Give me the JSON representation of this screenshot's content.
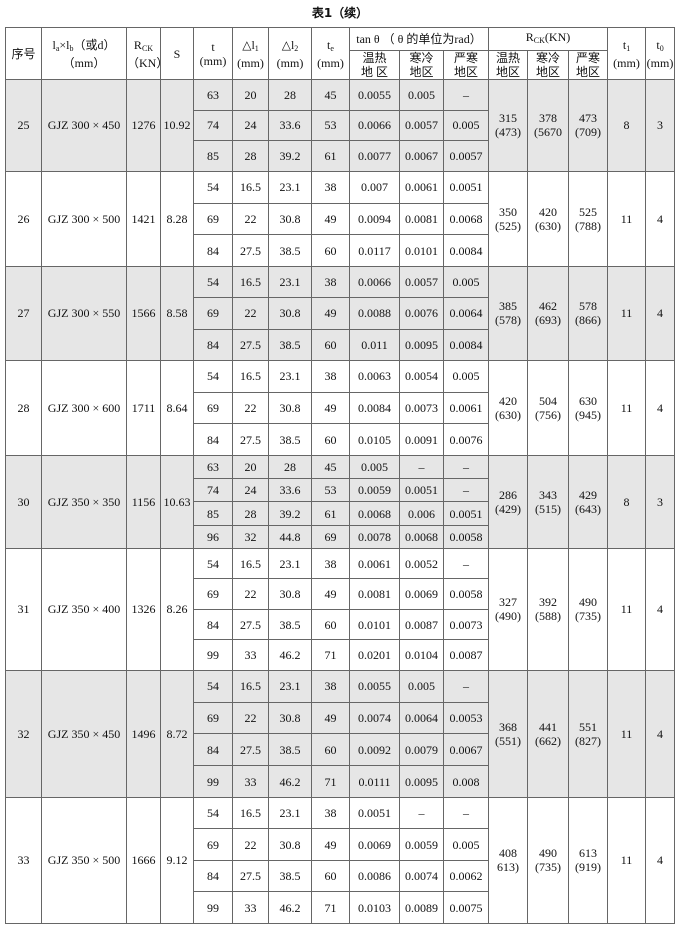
{
  "title": "表1（续）",
  "header": {
    "no": "序号",
    "size": {
      "l": "l",
      "a": "a",
      "x": "×l",
      "b": "b",
      "rest": "（或d）",
      "unit": "（mm）"
    },
    "rck": {
      "base": "R",
      "sub": "CK",
      "unit": "（KN）"
    },
    "s": "S",
    "t": {
      "base": "t",
      "unit": "(mm)"
    },
    "dl1": {
      "base": "△l",
      "sub": "1",
      "unit": "(mm)"
    },
    "dl2": {
      "base": "△l",
      "sub": "2",
      "unit": "(mm)"
    },
    "te": {
      "base": "t",
      "sub": "e",
      "unit": "(mm)"
    },
    "tan": "tan θ （ θ 的单位为rad）",
    "rck2": {
      "base": "R",
      "sub": "CK",
      "rest": "(KN)"
    },
    "regions": [
      "温热\n地 区",
      "寒冷\n地区",
      "严寒\n地区"
    ],
    "regions2": [
      "温热\n地区",
      "寒冷\n地区",
      "严寒\n地区"
    ],
    "t1": {
      "base": "t",
      "sub": "1",
      "unit": "(mm)"
    },
    "t0": {
      "base": "t",
      "sub": "0",
      "unit": "(mm)"
    }
  },
  "groups": [
    {
      "no": "25",
      "model": "GJZ 300 × 450",
      "rck": "1276",
      "s": "10.92",
      "shaded": true,
      "rows": [
        [
          "63",
          "20",
          "28",
          "45",
          "0.0055",
          "0.005",
          "–"
        ],
        [
          "74",
          "24",
          "33.6",
          "53",
          "0.0066",
          "0.0057",
          "0.005"
        ],
        [
          "85",
          "28",
          "39.2",
          "61",
          "0.0077",
          "0.0067",
          "0.0057"
        ]
      ],
      "rck_regions": [
        "315\n(473)",
        "378\n(5670",
        "473\n(709)"
      ],
      "t1": "8",
      "t0": "3"
    },
    {
      "no": "26",
      "model": "GJZ 300 × 500",
      "rck": "1421",
      "s": "8.28",
      "shaded": false,
      "rows": [
        [
          "54",
          "16.5",
          "23.1",
          "38",
          "0.007",
          "0.0061",
          "0.0051"
        ],
        [
          "69",
          "22",
          "30.8",
          "49",
          "0.0094",
          "0.0081",
          "0.0068"
        ],
        [
          "84",
          "27.5",
          "38.5",
          "60",
          "0.0117",
          "0.0101",
          "0.0084"
        ]
      ],
      "rck_regions": [
        "350\n(525)",
        "420\n(630)",
        "525\n(788)"
      ],
      "t1": "11",
      "t0": "4"
    },
    {
      "no": "27",
      "model": "GJZ 300 × 550",
      "rck": "1566",
      "s": "8.58",
      "shaded": true,
      "rows": [
        [
          "54",
          "16.5",
          "23.1",
          "38",
          "0.0066",
          "0.0057",
          "0.005"
        ],
        [
          "69",
          "22",
          "30.8",
          "49",
          "0.0088",
          "0.0076",
          "0.0064"
        ],
        [
          "84",
          "27.5",
          "38.5",
          "60",
          "0.011",
          "0.0095",
          "0.0084"
        ]
      ],
      "rck_regions": [
        "385\n(578)",
        "462\n(693)",
        "578\n(866)"
      ],
      "t1": "11",
      "t0": "4"
    },
    {
      "no": "28",
      "model": "GJZ 300 × 600",
      "rck": "1711",
      "s": "8.64",
      "shaded": false,
      "rows": [
        [
          "54",
          "16.5",
          "23.1",
          "38",
          "0.0063",
          "0.0054",
          "0.005"
        ],
        [
          "69",
          "22",
          "30.8",
          "49",
          "0.0084",
          "0.0073",
          "0.0061"
        ],
        [
          "84",
          "27.5",
          "38.5",
          "60",
          "0.0105",
          "0.0091",
          "0.0076"
        ]
      ],
      "rck_regions": [
        "420\n(630)",
        "504\n(756)",
        "630\n(945)"
      ],
      "t1": "11",
      "t0": "4"
    },
    {
      "no": "30",
      "model": "GJZ 350 × 350",
      "rck": "1156",
      "s": "10.63",
      "shaded": true,
      "rows": [
        [
          "63",
          "20",
          "28",
          "45",
          "0.005",
          "–",
          "–"
        ],
        [
          "74",
          "24",
          "33.6",
          "53",
          "0.0059",
          "0.0051",
          "–"
        ],
        [
          "85",
          "28",
          "39.2",
          "61",
          "0.0068",
          "0.006",
          "0.0051"
        ],
        [
          "96",
          "32",
          "44.8",
          "69",
          "0.0078",
          "0.0068",
          "0.0058"
        ]
      ],
      "rck_regions": [
        "286\n(429)",
        "343\n(515)",
        "429\n(643)"
      ],
      "t1": "8",
      "t0": "3"
    },
    {
      "no": "31",
      "model": "GJZ 350 × 400",
      "rck": "1326",
      "s": "8.26",
      "shaded": false,
      "rows": [
        [
          "54",
          "16.5",
          "23.1",
          "38",
          "0.0061",
          "0.0052",
          "–"
        ],
        [
          "69",
          "22",
          "30.8",
          "49",
          "0.0081",
          "0.0069",
          "0.0058"
        ],
        [
          "84",
          "27.5",
          "38.5",
          "60",
          "0.0101",
          "0.0087",
          "0.0073"
        ],
        [
          "99",
          "33",
          "46.2",
          "71",
          "0.0201",
          "0.0104",
          "0.0087"
        ]
      ],
      "rck_regions": [
        "327\n(490)",
        "392\n(588)",
        "490\n(735)"
      ],
      "t1": "11",
      "t0": "4"
    },
    {
      "no": "32",
      "model": "GJZ 350 × 450",
      "rck": "1496",
      "s": "8.72",
      "shaded": true,
      "rows": [
        [
          "54",
          "16.5",
          "23.1",
          "38",
          "0.0055",
          "0.005",
          "–"
        ],
        [
          "69",
          "22",
          "30.8",
          "49",
          "0.0074",
          "0.0064",
          "0.0053"
        ],
        [
          "84",
          "27.5",
          "38.5",
          "60",
          "0.0092",
          "0.0079",
          "0.0067"
        ],
        [
          "99",
          "33",
          "46.2",
          "71",
          "0.0111",
          "0.0095",
          "0.008"
        ]
      ],
      "rck_regions": [
        "368\n(551)",
        "441\n(662)",
        "551\n(827)"
      ],
      "t1": "11",
      "t0": "4"
    },
    {
      "no": "33",
      "model": "GJZ 350 × 500",
      "rck": "1666",
      "s": "9.12",
      "shaded": false,
      "rows": [
        [
          "54",
          "16.5",
          "23.1",
          "38",
          "0.0051",
          "–",
          "–"
        ],
        [
          "69",
          "22",
          "30.8",
          "49",
          "0.0069",
          "0.0059",
          "0.005"
        ],
        [
          "84",
          "27.5",
          "38.5",
          "60",
          "0.0086",
          "0.0074",
          "0.0062"
        ],
        [
          "99",
          "33",
          "46.2",
          "71",
          "0.0103",
          "0.0089",
          "0.0075"
        ]
      ],
      "rck_regions": [
        "408\n613)",
        "490\n(735)",
        "613\n(919)"
      ],
      "t1": "11",
      "t0": "4"
    }
  ]
}
